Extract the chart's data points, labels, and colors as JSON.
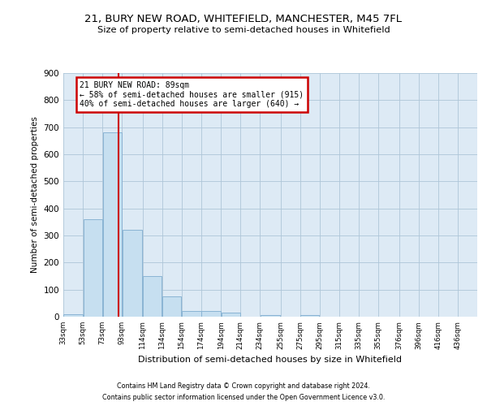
{
  "title": "21, BURY NEW ROAD, WHITEFIELD, MANCHESTER, M45 7FL",
  "subtitle": "Size of property relative to semi-detached houses in Whitefield",
  "xlabel": "Distribution of semi-detached houses by size in Whitefield",
  "ylabel": "Number of semi-detached properties",
  "footnote1": "Contains HM Land Registry data © Crown copyright and database right 2024.",
  "footnote2": "Contains public sector information licensed under the Open Government Licence v3.0.",
  "bar_left_edges": [
    33,
    53,
    73,
    93,
    114,
    134,
    154,
    174,
    194,
    214,
    234,
    255,
    275,
    295,
    315,
    335,
    355,
    376,
    396,
    416
  ],
  "bar_widths": [
    20,
    20,
    20,
    21,
    20,
    20,
    20,
    20,
    20,
    20,
    21,
    20,
    20,
    20,
    20,
    20,
    21,
    20,
    20,
    20
  ],
  "bar_heights": [
    10,
    360,
    680,
    320,
    150,
    75,
    20,
    20,
    15,
    0,
    5,
    0,
    5,
    0,
    0,
    0,
    0,
    0,
    0,
    0
  ],
  "tick_labels": [
    "33sqm",
    "53sqm",
    "73sqm",
    "93sqm",
    "114sqm",
    "134sqm",
    "154sqm",
    "174sqm",
    "194sqm",
    "214sqm",
    "234sqm",
    "255sqm",
    "275sqm",
    "295sqm",
    "315sqm",
    "335sqm",
    "355sqm",
    "376sqm",
    "396sqm",
    "416sqm",
    "436sqm"
  ],
  "bar_color": "#c6dff0",
  "bar_edge_color": "#8ab4d4",
  "grid_color": "#aec6d8",
  "bg_color": "#ddeaf5",
  "vline_x": 89,
  "vline_color": "#cc0000",
  "annotation_title": "21 BURY NEW ROAD: 89sqm",
  "annotation_line1": "← 58% of semi-detached houses are smaller (915)",
  "annotation_line2": "40% of semi-detached houses are larger (640) →",
  "annotation_box_color": "#cc0000",
  "ylim": [
    0,
    900
  ],
  "yticks": [
    0,
    100,
    200,
    300,
    400,
    500,
    600,
    700,
    800,
    900
  ]
}
